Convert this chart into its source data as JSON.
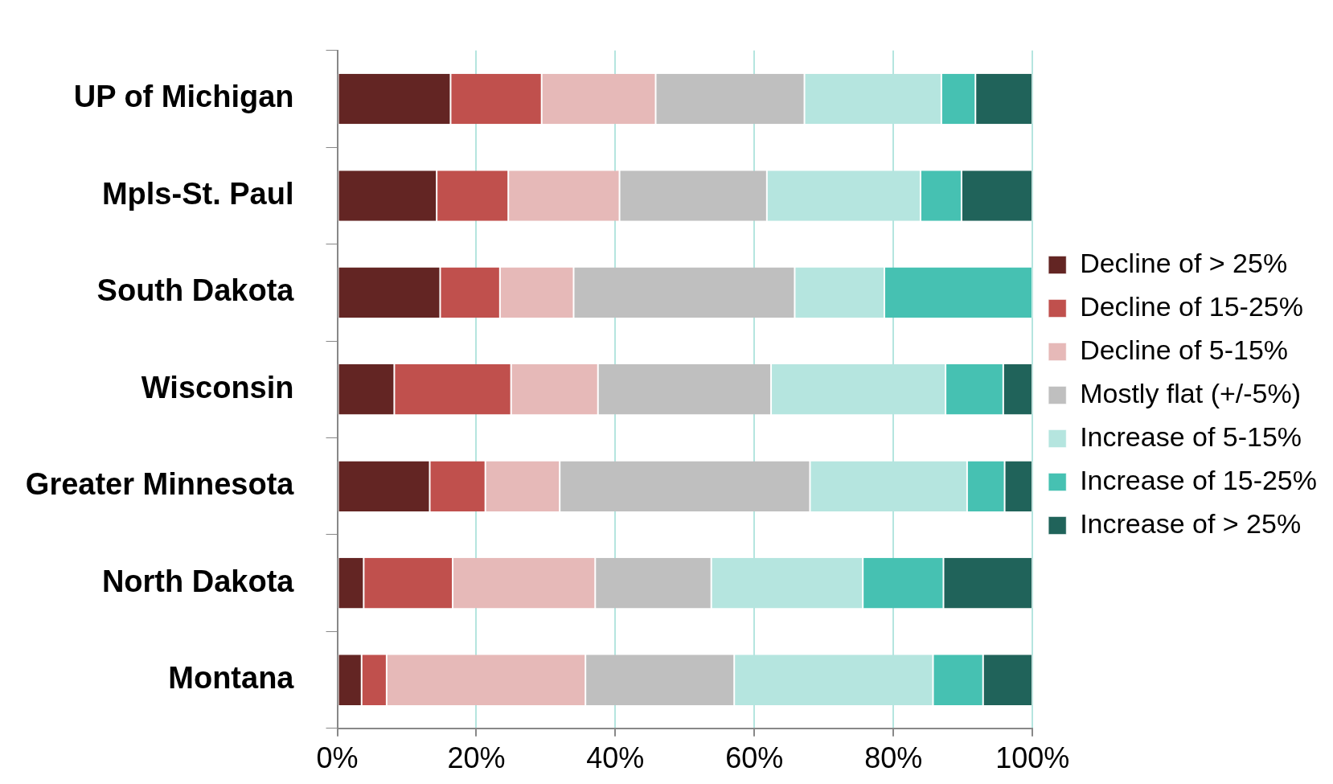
{
  "chart_data": {
    "type": "bar",
    "orientation": "horizontal",
    "stacked": true,
    "categories": [
      "UP of Michigan",
      "Mpls-St. Paul",
      "South Dakota",
      "Wisconsin",
      "Greater Minnesota",
      "North Dakota",
      "Montana"
    ],
    "series": [
      {
        "name": "Decline of > 25%",
        "color": "#632523",
        "values": [
          16.3,
          14.3,
          14.8,
          8.2,
          13.3,
          3.8,
          3.5
        ]
      },
      {
        "name": "Decline of 15-25%",
        "color": "#c0504d",
        "values": [
          13.1,
          10.3,
          8.6,
          16.8,
          8.0,
          12.8,
          3.6
        ]
      },
      {
        "name": "Decline of 5-15%",
        "color": "#e6b9b8",
        "values": [
          16.4,
          16.0,
          10.6,
          12.5,
          10.7,
          20.5,
          28.6
        ]
      },
      {
        "name": "Mostly flat (+/-5%)",
        "color": "#bfbfbf",
        "values": [
          21.4,
          21.2,
          31.8,
          24.9,
          36.0,
          16.7,
          21.4
        ]
      },
      {
        "name": "Increase of 5-15%",
        "color": "#b5e5df",
        "values": [
          19.7,
          22.1,
          12.9,
          25.1,
          22.6,
          21.8,
          28.6
        ]
      },
      {
        "name": "Increase of 15-25%",
        "color": "#46c1b2",
        "values": [
          4.9,
          5.9,
          21.3,
          8.3,
          5.4,
          11.6,
          7.2
        ]
      },
      {
        "name": "Increase of > 25%",
        "color": "#20635a",
        "values": [
          8.2,
          10.2,
          0,
          4.2,
          4.0,
          12.8,
          7.1
        ]
      }
    ],
    "xlim": [
      0,
      100
    ],
    "xticks": [
      {
        "value": 0,
        "label": "0%"
      },
      {
        "value": 20,
        "label": "20%"
      },
      {
        "value": 40,
        "label": "40%"
      },
      {
        "value": 60,
        "label": "60%"
      },
      {
        "value": 80,
        "label": "80%"
      },
      {
        "value": 100,
        "label": "100%"
      }
    ],
    "grid": "x",
    "legend": "right"
  }
}
